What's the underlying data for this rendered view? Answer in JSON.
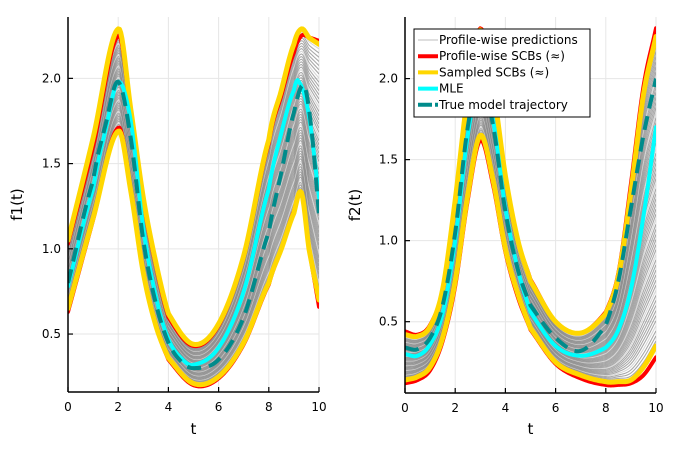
{
  "chart_data": [
    {
      "type": "line",
      "panel": "left",
      "title": "",
      "xlabel": "t",
      "ylabel": "f1(t)",
      "xlim": [
        0,
        10
      ],
      "ylim": [
        0.16,
        2.36
      ],
      "xticks": [
        0,
        2,
        4,
        6,
        8,
        10
      ],
      "xtick_labels": [
        "0",
        "2",
        "4",
        "6",
        "8",
        "10"
      ],
      "yticks": [
        0.5,
        1.0,
        1.5,
        2.0
      ],
      "ytick_labels": [
        "0.5",
        "1.0",
        "1.5",
        "2.0"
      ],
      "grid": true,
      "profile_curve_count": 60,
      "series": [
        {
          "name": "Profile-wise SCBs upper",
          "role": "red-upper",
          "x": [
            0,
            1,
            2,
            2.5,
            3,
            3.5,
            4,
            5,
            6,
            7,
            8,
            8.5,
            9,
            9.3,
            9.6,
            10
          ],
          "y": [
            1.03,
            1.6,
            2.25,
            1.8,
            1.28,
            0.9,
            0.6,
            0.43,
            0.55,
            0.95,
            1.62,
            1.9,
            2.15,
            2.25,
            2.24,
            2.22
          ]
        },
        {
          "name": "Profile-wise SCBs lower",
          "role": "red-lower",
          "x": [
            0,
            1,
            2,
            2.5,
            3,
            3.5,
            4,
            5,
            6,
            7,
            8,
            8.5,
            9,
            9.3,
            9.6,
            10
          ],
          "y": [
            0.63,
            1.17,
            1.71,
            1.35,
            0.86,
            0.55,
            0.35,
            0.2,
            0.24,
            0.44,
            0.79,
            1.0,
            1.22,
            1.33,
            1.0,
            0.66
          ]
        },
        {
          "name": "Sampled SCBs upper",
          "role": "yellow-upper",
          "x": [
            0,
            1,
            2,
            2.5,
            3,
            3.5,
            4,
            5,
            6,
            7,
            8,
            8.5,
            9,
            9.3,
            9.6,
            10
          ],
          "y": [
            1.05,
            1.65,
            2.29,
            1.82,
            1.3,
            0.92,
            0.62,
            0.44,
            0.56,
            0.96,
            1.64,
            1.93,
            2.2,
            2.29,
            2.24,
            2.2
          ]
        },
        {
          "name": "Sampled SCBs lower",
          "role": "yellow-lower",
          "x": [
            0,
            1,
            2,
            2.5,
            3,
            3.5,
            4,
            5,
            6,
            7,
            8,
            8.5,
            9,
            9.3,
            9.6,
            10
          ],
          "y": [
            0.65,
            1.18,
            1.69,
            1.34,
            0.86,
            0.55,
            0.36,
            0.21,
            0.25,
            0.45,
            0.8,
            1.0,
            1.21,
            1.33,
            1.0,
            0.7
          ]
        },
        {
          "name": "MLE",
          "role": "mle",
          "x": [
            0,
            1,
            1.5,
            2,
            2.5,
            3,
            3.5,
            4,
            4.5,
            5,
            6,
            7,
            8,
            8.5,
            9,
            9.2,
            9.6,
            10
          ],
          "y": [
            0.78,
            1.35,
            1.7,
            1.98,
            1.75,
            1.12,
            0.72,
            0.47,
            0.36,
            0.32,
            0.42,
            0.75,
            1.35,
            1.68,
            1.93,
            1.98,
            1.78,
            1.3
          ]
        },
        {
          "name": "True model trajectory",
          "role": "true",
          "x": [
            0,
            1,
            1.5,
            2,
            2.5,
            3,
            3.5,
            4,
            4.5,
            5,
            6,
            7,
            8,
            8.5,
            9,
            9.4,
            9.7,
            10
          ],
          "y": [
            0.8,
            1.4,
            1.73,
            1.98,
            1.65,
            1.05,
            0.68,
            0.45,
            0.34,
            0.3,
            0.35,
            0.6,
            1.1,
            1.45,
            1.8,
            1.96,
            1.7,
            1.2
          ]
        }
      ]
    },
    {
      "type": "line",
      "panel": "right",
      "title": "",
      "xlabel": "t",
      "ylabel": "f2(t)",
      "xlim": [
        0,
        10
      ],
      "ylim": [
        0.06,
        2.38
      ],
      "xticks": [
        0,
        2,
        4,
        6,
        8,
        10
      ],
      "xtick_labels": [
        "0",
        "2",
        "4",
        "6",
        "8",
        "10"
      ],
      "yticks": [
        0.5,
        1.0,
        1.5,
        2.0
      ],
      "ytick_labels": [
        "0.5",
        "1.0",
        "1.5",
        "2.0"
      ],
      "grid": true,
      "profile_curve_count": 60,
      "legend": {
        "placement": "top-left",
        "entries": [
          {
            "label": "Profile-wise predictions",
            "color": "#d3d3d3",
            "style": "solid"
          },
          {
            "label": "Profile-wise SCBs (≈)",
            "color": "#ff0000",
            "style": "solid"
          },
          {
            "label": "Sampled SCBs (≈)",
            "color": "#ffd700",
            "style": "solid"
          },
          {
            "label": "MLE",
            "color": "#00ffff",
            "style": "solid"
          },
          {
            "label": "True model trajectory",
            "color": "#008b8b",
            "style": "dashed"
          }
        ]
      },
      "series": [
        {
          "name": "Profile-wise SCBs upper",
          "role": "red-upper",
          "x": [
            0,
            0.5,
            1,
            1.5,
            2,
            2.5,
            3,
            3.5,
            4,
            4.5,
            5,
            6,
            7,
            8,
            8.5,
            9,
            9.5,
            10
          ],
          "y": [
            0.44,
            0.42,
            0.48,
            0.7,
            1.25,
            1.9,
            2.31,
            1.95,
            1.4,
            1.0,
            0.76,
            0.5,
            0.43,
            0.56,
            0.8,
            1.35,
            1.95,
            2.31
          ]
        },
        {
          "name": "Profile-wise SCBs lower",
          "role": "red-lower",
          "x": [
            0,
            0.5,
            1,
            1.5,
            2,
            2.5,
            3,
            3.5,
            4,
            4.5,
            5,
            6,
            7,
            8,
            8.5,
            9,
            9.5,
            10
          ],
          "y": [
            0.12,
            0.14,
            0.2,
            0.38,
            0.72,
            1.25,
            1.62,
            1.35,
            0.93,
            0.65,
            0.45,
            0.24,
            0.15,
            0.11,
            0.11,
            0.12,
            0.17,
            0.28
          ]
        },
        {
          "name": "Sampled SCBs upper",
          "role": "yellow-upper",
          "x": [
            0,
            0.5,
            1,
            1.5,
            2,
            2.5,
            3,
            3.5,
            4,
            4.5,
            5,
            6,
            7,
            8,
            8.5,
            9,
            9.5,
            10
          ],
          "y": [
            0.42,
            0.41,
            0.47,
            0.7,
            1.25,
            1.9,
            2.3,
            1.95,
            1.4,
            1.0,
            0.75,
            0.5,
            0.43,
            0.55,
            0.78,
            1.3,
            1.9,
            2.26
          ]
        },
        {
          "name": "Sampled SCBs lower",
          "role": "yellow-lower",
          "x": [
            0,
            0.5,
            1,
            1.5,
            2,
            2.5,
            3,
            3.5,
            4,
            4.5,
            5,
            6,
            7,
            8,
            8.5,
            9,
            9.5,
            10
          ],
          "y": [
            0.14,
            0.16,
            0.22,
            0.4,
            0.75,
            1.28,
            1.65,
            1.38,
            0.95,
            0.67,
            0.46,
            0.25,
            0.17,
            0.13,
            0.13,
            0.14,
            0.22,
            0.35
          ]
        },
        {
          "name": "MLE",
          "role": "mle",
          "x": [
            0,
            0.5,
            1,
            1.5,
            2,
            2.5,
            3,
            3.5,
            4,
            4.5,
            5,
            6,
            7,
            8,
            8.5,
            9,
            9.5,
            10
          ],
          "y": [
            0.3,
            0.29,
            0.36,
            0.55,
            1.0,
            1.65,
            2.0,
            1.75,
            1.2,
            0.82,
            0.56,
            0.35,
            0.29,
            0.34,
            0.45,
            0.7,
            1.15,
            1.7
          ]
        },
        {
          "name": "True model trajectory",
          "role": "true",
          "x": [
            0,
            0.5,
            1,
            1.5,
            2,
            2.5,
            3,
            3.5,
            4,
            4.5,
            5,
            6,
            7,
            8,
            8.5,
            9,
            9.5,
            10
          ],
          "y": [
            0.34,
            0.33,
            0.4,
            0.6,
            1.05,
            1.7,
            2.0,
            1.72,
            1.18,
            0.82,
            0.6,
            0.4,
            0.32,
            0.48,
            0.75,
            1.2,
            1.65,
            2.0
          ]
        }
      ]
    }
  ],
  "colors": {
    "profile": "#8c8c8c",
    "profile_light": "#d3d3d3",
    "red": "#ff0000",
    "yellow": "#ffd700",
    "mle": "#00ffff",
    "true": "#008b8b",
    "grid": "#e6e6e6"
  }
}
